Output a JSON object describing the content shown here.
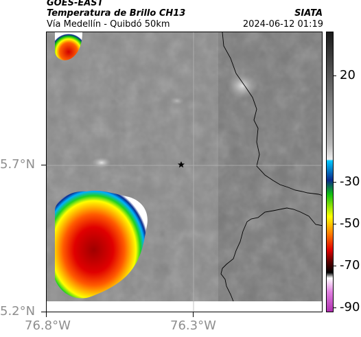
{
  "header": {
    "satellite": "GOES-EAST",
    "product": "Temperatura de Brillo CH13",
    "organization": "SIATA",
    "route": "Vía Medellín - Quibdó 50km",
    "timestamp": "2024-06-12 01:19"
  },
  "axes": {
    "lat_ticks": [
      "5.7°N",
      "5.2°N"
    ],
    "lon_ticks": [
      "76.8°W",
      "76.3°W"
    ]
  },
  "colorbar": {
    "tick_labels": [
      "20",
      "-30",
      "-50",
      "-70",
      "-90"
    ],
    "colors": {
      "top": "#1a1a1a",
      "warm_gray": "#9a9a9a",
      "light": "#e6e6e6",
      "cyan": "#00c8ff",
      "blue": "#0a2a8a",
      "green": "#10c010",
      "yellow": "#ffff00",
      "orange": "#ff8000",
      "red": "#e00000",
      "dark_red": "#600000",
      "black": "#000000",
      "magenta": "#c040c0"
    }
  },
  "map": {
    "marker_icon": "star-icon",
    "colors": {
      "background_gray": "#828282",
      "border_line": "#000000",
      "grid_line": "#b4b4b4",
      "cloud_warm": "#10c010"
    }
  }
}
